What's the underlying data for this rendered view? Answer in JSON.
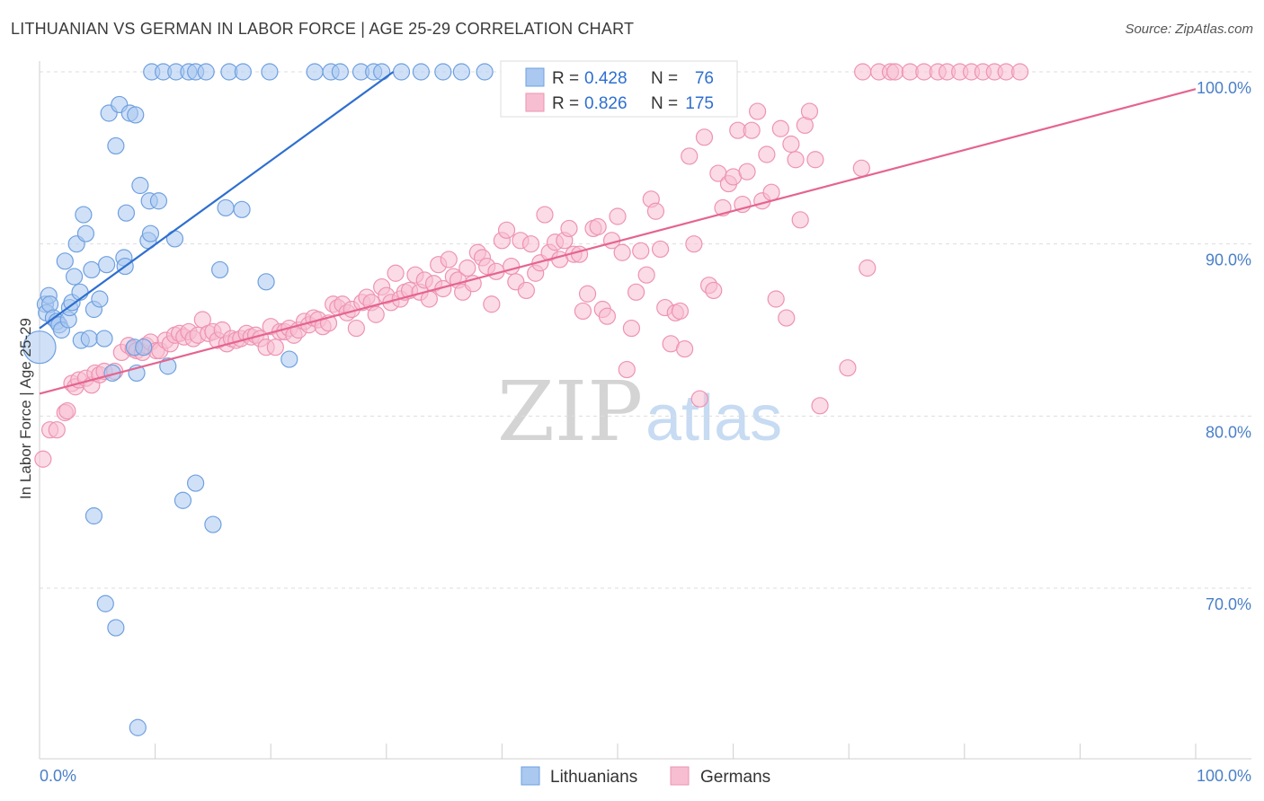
{
  "header": {
    "title": "LITHUANIAN VS GERMAN IN LABOR FORCE | AGE 25-29 CORRELATION CHART",
    "source": "Source: ZipAtlas.com"
  },
  "watermark": {
    "zip": "ZIP",
    "atlas": "atlas"
  },
  "colors": {
    "blue_fill": "#aac8f0",
    "blue_stroke": "#6fa0e0",
    "blue_line": "#2e6fcf",
    "pink_fill": "#f7bed1",
    "pink_stroke": "#ee93b1",
    "pink_line": "#e5648f",
    "tick_text": "#4a7fc8",
    "grid": "#dddddd"
  },
  "legend_box": {
    "r_label": "R =",
    "n_label": "N =",
    "rows": [
      {
        "r": "0.428",
        "n": "76",
        "series": "Lithuanians"
      },
      {
        "r": "0.826",
        "n": "175",
        "series": "Germans"
      }
    ]
  },
  "chart_data": {
    "type": "scatter",
    "title": "LITHUANIAN VS GERMAN IN LABOR FORCE | AGE 25-29 CORRELATION CHART",
    "xlabel": "",
    "ylabel": "In Labor Force | Age 25-29",
    "xlim": [
      0,
      100
    ],
    "ylim": [
      60,
      101.5
    ],
    "x_tick_labels": [
      "0.0%",
      "100.0%"
    ],
    "y_ticks": [
      70,
      80,
      90,
      100
    ],
    "y_tick_labels": [
      "70.0%",
      "80.0%",
      "90.0%",
      "100.0%"
    ],
    "grid": true,
    "legend_position": "bottom",
    "series": [
      {
        "name": "Lithuanians",
        "r": 0.428,
        "n": 76,
        "trend": {
          "x": [
            0,
            30.6
          ],
          "y": [
            85.1,
            100.0
          ]
        },
        "points": [
          [
            0.0,
            84.0,
            "large"
          ],
          [
            0.5,
            86.5
          ],
          [
            0.6,
            86.0
          ],
          [
            0.8,
            87.0
          ],
          [
            0.9,
            86.5
          ],
          [
            1.2,
            85.7
          ],
          [
            1.5,
            85.5
          ],
          [
            1.7,
            85.3
          ],
          [
            1.9,
            85.0
          ],
          [
            2.2,
            89.0
          ],
          [
            2.5,
            85.6
          ],
          [
            2.6,
            86.3
          ],
          [
            2.8,
            86.6
          ],
          [
            3.0,
            88.1
          ],
          [
            3.2,
            90.0
          ],
          [
            3.5,
            87.2
          ],
          [
            3.6,
            84.4
          ],
          [
            3.8,
            91.7
          ],
          [
            4.0,
            90.6
          ],
          [
            4.3,
            84.5
          ],
          [
            4.5,
            88.5
          ],
          [
            4.7,
            86.2
          ],
          [
            4.7,
            74.2
          ],
          [
            5.2,
            86.8
          ],
          [
            5.6,
            84.5
          ],
          [
            5.7,
            69.1
          ],
          [
            5.8,
            88.8
          ],
          [
            6.0,
            97.6
          ],
          [
            6.3,
            82.5
          ],
          [
            6.6,
            95.7
          ],
          [
            6.6,
            67.7
          ],
          [
            6.9,
            98.1
          ],
          [
            7.3,
            89.2
          ],
          [
            7.4,
            88.7
          ],
          [
            7.5,
            91.8
          ],
          [
            7.8,
            97.6
          ],
          [
            8.2,
            84.0
          ],
          [
            8.3,
            97.5
          ],
          [
            8.4,
            82.5
          ],
          [
            8.5,
            61.9
          ],
          [
            8.7,
            93.4
          ],
          [
            9.0,
            84.0
          ],
          [
            9.4,
            90.2
          ],
          [
            9.5,
            92.5
          ],
          [
            9.6,
            90.6
          ],
          [
            9.7,
            100.0
          ],
          [
            10.3,
            92.5
          ],
          [
            10.7,
            100.0
          ],
          [
            11.1,
            82.9
          ],
          [
            11.7,
            90.3
          ],
          [
            11.8,
            100.0
          ],
          [
            12.4,
            75.1
          ],
          [
            12.9,
            100.0
          ],
          [
            13.5,
            76.1
          ],
          [
            13.5,
            100.0
          ],
          [
            14.4,
            100.0
          ],
          [
            15.0,
            73.7
          ],
          [
            15.6,
            88.5
          ],
          [
            16.1,
            92.1
          ],
          [
            16.4,
            100.0
          ],
          [
            17.5,
            92.0
          ],
          [
            17.6,
            100.0
          ],
          [
            19.6,
            87.8
          ],
          [
            19.9,
            100.0
          ],
          [
            21.6,
            83.3
          ],
          [
            23.8,
            100.0
          ],
          [
            25.2,
            100.0
          ],
          [
            26.0,
            100.0
          ],
          [
            27.8,
            100.0
          ],
          [
            28.9,
            100.0
          ],
          [
            29.6,
            100.0
          ],
          [
            31.3,
            100.0
          ],
          [
            33.0,
            100.0
          ],
          [
            34.9,
            100.0
          ],
          [
            36.5,
            100.0
          ],
          [
            38.5,
            100.0
          ]
        ]
      },
      {
        "name": "Germans",
        "r": 0.826,
        "n": 175,
        "trend": {
          "x": [
            0,
            100
          ],
          "y": [
            81.3,
            99.0
          ]
        },
        "points": [
          [
            0.3,
            77.5
          ],
          [
            0.9,
            79.2
          ],
          [
            1.5,
            79.2
          ],
          [
            2.2,
            80.2
          ],
          [
            2.4,
            80.3
          ],
          [
            2.8,
            81.9
          ],
          [
            3.1,
            81.7
          ],
          [
            3.4,
            82.1
          ],
          [
            4.0,
            82.2
          ],
          [
            4.5,
            81.8
          ],
          [
            4.8,
            82.5
          ],
          [
            5.2,
            82.4
          ],
          [
            5.6,
            82.6
          ],
          [
            6.5,
            82.6
          ],
          [
            7.1,
            83.7
          ],
          [
            7.7,
            84.1
          ],
          [
            8.1,
            83.9
          ],
          [
            8.4,
            83.8
          ],
          [
            8.9,
            83.7
          ],
          [
            9.2,
            84.1
          ],
          [
            9.6,
            84.3
          ],
          [
            10.1,
            83.8
          ],
          [
            10.4,
            83.8
          ],
          [
            10.9,
            84.4
          ],
          [
            11.3,
            84.2
          ],
          [
            11.7,
            84.7
          ],
          [
            12.1,
            84.8
          ],
          [
            12.5,
            84.6
          ],
          [
            12.9,
            84.9
          ],
          [
            13.3,
            84.5
          ],
          [
            13.7,
            84.7
          ],
          [
            14.1,
            85.6
          ],
          [
            14.6,
            84.8
          ],
          [
            15.0,
            84.9
          ],
          [
            15.4,
            84.4
          ],
          [
            15.8,
            85.0
          ],
          [
            16.2,
            84.2
          ],
          [
            16.6,
            84.5
          ],
          [
            17.0,
            84.4
          ],
          [
            17.4,
            84.5
          ],
          [
            17.9,
            84.8
          ],
          [
            18.3,
            84.6
          ],
          [
            18.7,
            84.7
          ],
          [
            19.1,
            84.5
          ],
          [
            19.6,
            84.0
          ],
          [
            20.0,
            85.2
          ],
          [
            20.4,
            84.0
          ],
          [
            20.8,
            84.9
          ],
          [
            21.2,
            84.9
          ],
          [
            21.6,
            85.1
          ],
          [
            22.0,
            84.7
          ],
          [
            22.4,
            85.0
          ],
          [
            22.9,
            85.5
          ],
          [
            23.3,
            85.3
          ],
          [
            23.7,
            85.7
          ],
          [
            24.1,
            85.6
          ],
          [
            24.5,
            85.2
          ],
          [
            25.0,
            85.4
          ],
          [
            25.4,
            86.5
          ],
          [
            25.8,
            86.3
          ],
          [
            26.2,
            86.5
          ],
          [
            26.6,
            86.0
          ],
          [
            27.0,
            86.2
          ],
          [
            27.4,
            85.1
          ],
          [
            27.9,
            86.6
          ],
          [
            28.3,
            86.9
          ],
          [
            28.7,
            86.6
          ],
          [
            29.1,
            85.9
          ],
          [
            29.6,
            87.5
          ],
          [
            30.0,
            87.0
          ],
          [
            30.4,
            86.6
          ],
          [
            30.8,
            88.3
          ],
          [
            31.2,
            86.8
          ],
          [
            31.6,
            87.2
          ],
          [
            32.0,
            87.3
          ],
          [
            32.5,
            88.2
          ],
          [
            32.9,
            87.2
          ],
          [
            33.3,
            87.9
          ],
          [
            33.7,
            86.8
          ],
          [
            34.1,
            87.7
          ],
          [
            34.5,
            88.8
          ],
          [
            34.9,
            87.4
          ],
          [
            35.4,
            89.1
          ],
          [
            35.8,
            88.1
          ],
          [
            36.2,
            87.9
          ],
          [
            36.6,
            87.2
          ],
          [
            37.0,
            88.6
          ],
          [
            37.5,
            87.7
          ],
          [
            37.9,
            89.5
          ],
          [
            38.3,
            89.2
          ],
          [
            38.7,
            88.7
          ],
          [
            39.1,
            86.5
          ],
          [
            39.5,
            88.4
          ],
          [
            40.0,
            90.2
          ],
          [
            40.4,
            90.8
          ],
          [
            40.8,
            88.7
          ],
          [
            41.2,
            87.8
          ],
          [
            41.6,
            90.2
          ],
          [
            42.1,
            87.3
          ],
          [
            42.5,
            90.0
          ],
          [
            42.9,
            88.3
          ],
          [
            43.3,
            88.9
          ],
          [
            43.7,
            91.7
          ],
          [
            44.1,
            89.5
          ],
          [
            44.6,
            90.1
          ],
          [
            45.0,
            89.1
          ],
          [
            45.4,
            90.2
          ],
          [
            45.8,
            90.9
          ],
          [
            46.2,
            89.4
          ],
          [
            46.7,
            89.4
          ],
          [
            47.0,
            86.1
          ],
          [
            47.4,
            87.1
          ],
          [
            47.9,
            90.9
          ],
          [
            48.3,
            91.0
          ],
          [
            48.7,
            86.2
          ],
          [
            49.1,
            85.8
          ],
          [
            49.5,
            90.2
          ],
          [
            50.0,
            91.6
          ],
          [
            50.4,
            89.5
          ],
          [
            50.8,
            82.7
          ],
          [
            51.2,
            85.1
          ],
          [
            51.6,
            87.2
          ],
          [
            52.0,
            89.6
          ],
          [
            52.5,
            88.2
          ],
          [
            52.9,
            92.6
          ],
          [
            53.3,
            91.9
          ],
          [
            53.7,
            89.7
          ],
          [
            54.1,
            86.3
          ],
          [
            54.6,
            84.2
          ],
          [
            55.0,
            86.0
          ],
          [
            55.4,
            86.1
          ],
          [
            55.8,
            83.9
          ],
          [
            56.2,
            95.1
          ],
          [
            56.6,
            90.0
          ],
          [
            57.1,
            81.0
          ],
          [
            57.5,
            96.2
          ],
          [
            57.9,
            87.6
          ],
          [
            58.3,
            87.3
          ],
          [
            58.7,
            94.1
          ],
          [
            59.1,
            92.1
          ],
          [
            59.6,
            93.5
          ],
          [
            60.0,
            93.9
          ],
          [
            60.4,
            96.6
          ],
          [
            60.8,
            92.3
          ],
          [
            61.2,
            94.2
          ],
          [
            61.6,
            96.6
          ],
          [
            62.1,
            97.7
          ],
          [
            62.5,
            92.5
          ],
          [
            62.9,
            95.2
          ],
          [
            63.3,
            93.0
          ],
          [
            63.7,
            86.8
          ],
          [
            64.1,
            96.7
          ],
          [
            64.6,
            85.7
          ],
          [
            65.0,
            95.8
          ],
          [
            65.4,
            94.9
          ],
          [
            65.8,
            91.4
          ],
          [
            66.2,
            96.9
          ],
          [
            66.6,
            97.7
          ],
          [
            67.1,
            94.9
          ],
          [
            67.5,
            80.6
          ],
          [
            69.9,
            82.8
          ],
          [
            71.1,
            94.4
          ],
          [
            71.6,
            88.6
          ],
          [
            71.2,
            100.0
          ],
          [
            72.6,
            100.0
          ],
          [
            73.6,
            100.0
          ],
          [
            74.0,
            100.0
          ],
          [
            75.3,
            100.0
          ],
          [
            76.5,
            100.0
          ],
          [
            77.7,
            100.0
          ],
          [
            78.5,
            100.0
          ],
          [
            79.6,
            100.0
          ],
          [
            80.6,
            100.0
          ],
          [
            81.6,
            100.0
          ],
          [
            82.6,
            100.0
          ],
          [
            83.6,
            100.0
          ],
          [
            84.8,
            100.0
          ]
        ]
      }
    ]
  }
}
